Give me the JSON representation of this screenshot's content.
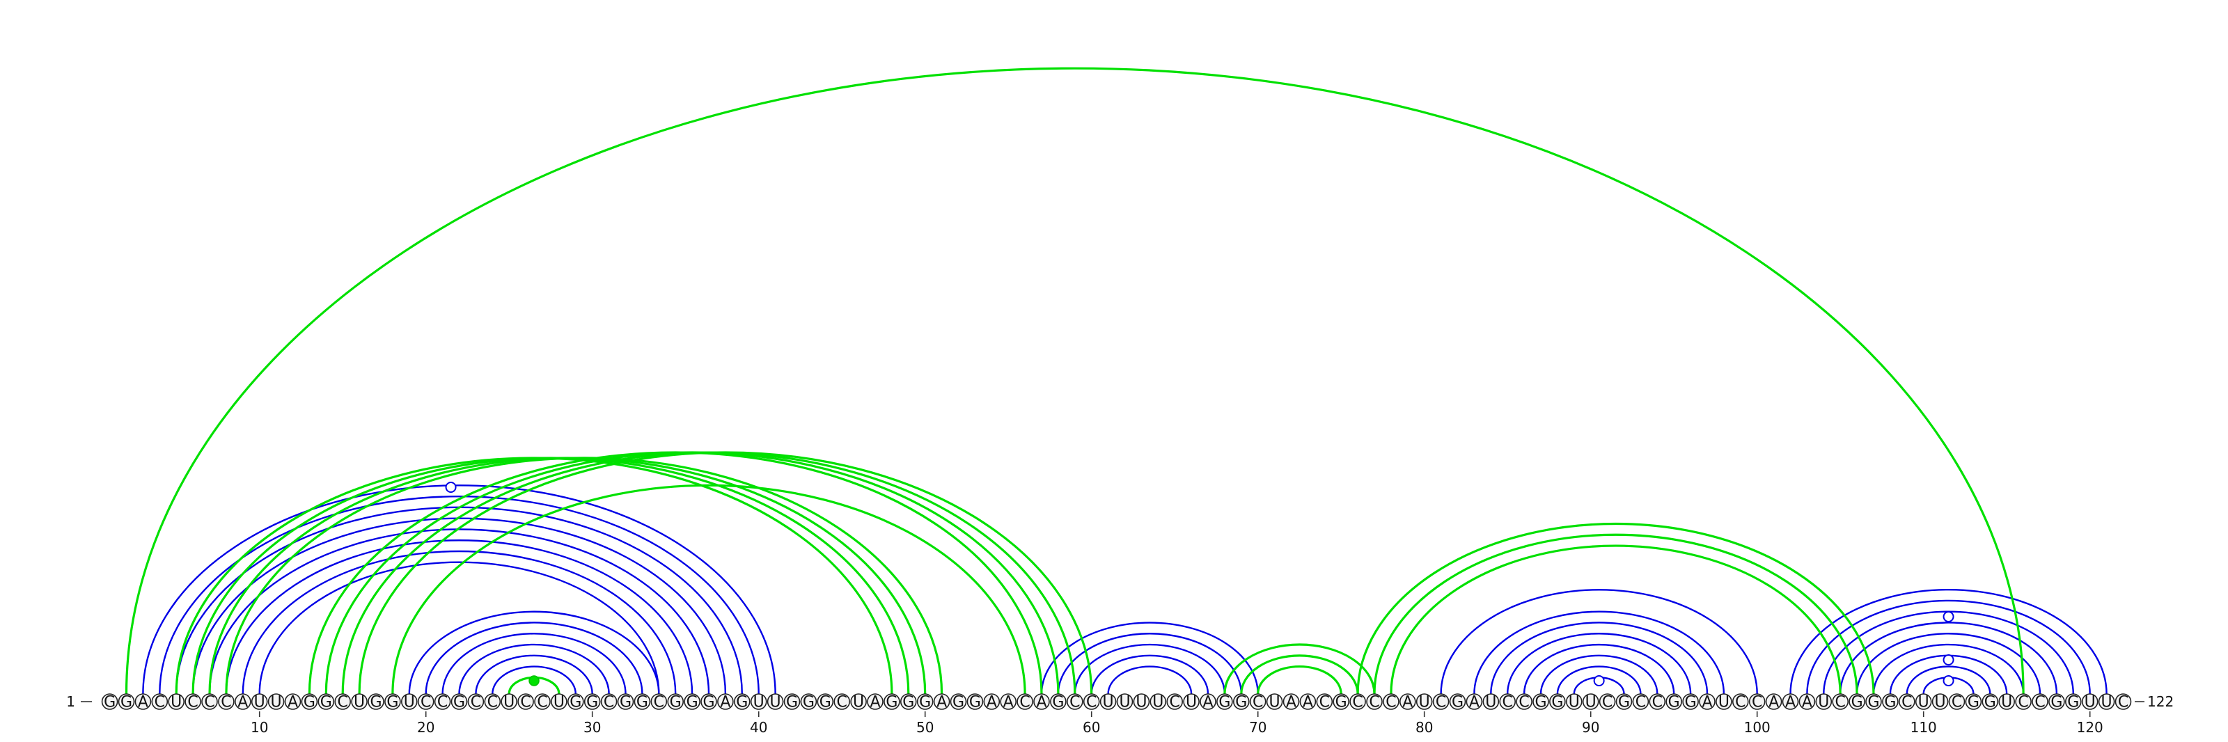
{
  "sequence": "GGACUCCCAUUAGGCUGGUCCGCCUCCUGGCGGCGGGAGUUGGGCUAGGGAGGAACAGCCUUUUCUAGGCUAACGCCCAUCGAUCCGGUUCGCCGGAUCCAAAUCGGGCUUCGGUCCGGUUC",
  "start_label": "1",
  "end_label": "122",
  "tick_positions": [
    10,
    20,
    30,
    40,
    50,
    60,
    70,
    80,
    90,
    100,
    110,
    120
  ],
  "colors": {
    "blue": "#0000e6",
    "green": "#00e000"
  },
  "arc_sets": [
    {
      "color": "blue",
      "pairs": [
        [
          3,
          41
        ],
        [
          4,
          40
        ],
        [
          5,
          39
        ],
        [
          6,
          38
        ],
        [
          7,
          37
        ],
        [
          8,
          36
        ],
        [
          9,
          35
        ],
        [
          10,
          34
        ]
      ]
    },
    {
      "color": "blue",
      "pairs": [
        [
          19,
          34
        ],
        [
          20,
          33
        ],
        [
          21,
          32
        ],
        [
          22,
          31
        ],
        [
          23,
          30
        ],
        [
          24,
          29
        ],
        [
          25,
          28
        ]
      ]
    },
    {
      "color": "blue",
      "pairs": [
        [
          57,
          70
        ],
        [
          58,
          69
        ],
        [
          59,
          68
        ],
        [
          60,
          67
        ],
        [
          61,
          66
        ]
      ]
    },
    {
      "color": "blue",
      "pairs": [
        [
          81,
          100
        ],
        [
          83,
          98
        ],
        [
          84,
          97
        ],
        [
          85,
          96
        ],
        [
          86,
          95
        ],
        [
          87,
          94
        ],
        [
          88,
          93
        ],
        [
          89,
          92
        ]
      ]
    },
    {
      "color": "blue",
      "pairs": [
        [
          102,
          121
        ],
        [
          103,
          120
        ],
        [
          104,
          119
        ],
        [
          105,
          118
        ],
        [
          106,
          117
        ],
        [
          107,
          116
        ],
        [
          108,
          115
        ],
        [
          109,
          114
        ],
        [
          110,
          113
        ]
      ]
    },
    {
      "color": "green",
      "pairs": [
        [
          2,
          116
        ]
      ]
    },
    {
      "color": "green",
      "pairs": [
        [
          5,
          48
        ],
        [
          6,
          49
        ],
        [
          7,
          50
        ],
        [
          8,
          51
        ]
      ]
    },
    {
      "color": "green",
      "pairs": [
        [
          13,
          57
        ],
        [
          14,
          58
        ],
        [
          15,
          59
        ],
        [
          16,
          60
        ],
        [
          18,
          56
        ]
      ]
    },
    {
      "color": "green",
      "pairs": [
        [
          25,
          28
        ]
      ]
    },
    {
      "color": "green",
      "pairs": [
        [
          68,
          77
        ],
        [
          69,
          76
        ],
        [
          70,
          75
        ]
      ]
    },
    {
      "color": "green",
      "pairs": [
        [
          76,
          107
        ],
        [
          77,
          106
        ],
        [
          78,
          105
        ]
      ]
    }
  ],
  "markers": [
    {
      "type": "open",
      "pos": 21.5,
      "row": "high"
    },
    {
      "type": "filled",
      "pos": 26.5,
      "row": "low"
    },
    {
      "type": "open",
      "pos": 90.5,
      "row": "low"
    },
    {
      "type": "open",
      "pos": 111.5,
      "row": "low"
    },
    {
      "type": "open",
      "pos": 111.5,
      "row": "mid"
    },
    {
      "type": "open",
      "pos": 111.5,
      "row": "upper"
    }
  ]
}
